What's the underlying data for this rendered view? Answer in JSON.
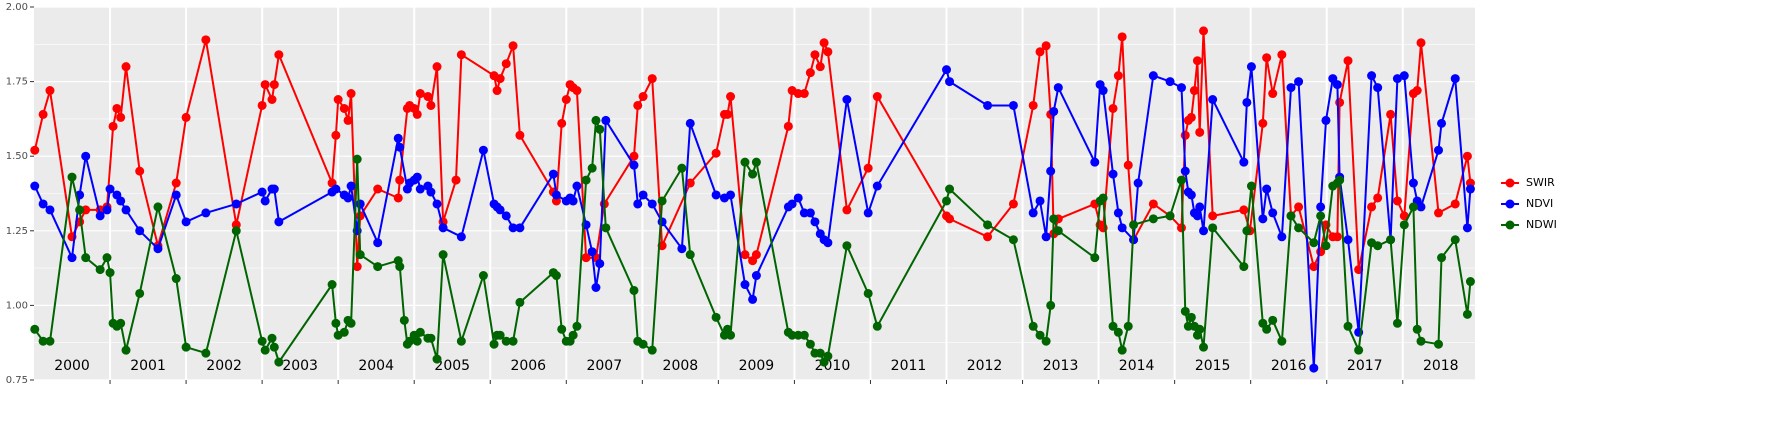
{
  "chart_data": {
    "type": "line",
    "xlim": [
      2000,
      2018.95
    ],
    "ylim": [
      0.75,
      2.0
    ],
    "yticks": [
      0.75,
      {
        "value": 1.0,
        "label": "1.00"
      },
      1.25,
      {
        "value": 1.5,
        "label": "1.50"
      },
      1.75,
      {
        "value": 2.0,
        "label": "2.00"
      }
    ],
    "xticks": [
      {
        "value": 2000.5,
        "label": "2000"
      },
      {
        "value": 2001.5,
        "label": "2001"
      },
      {
        "value": 2002.5,
        "label": "2002"
      },
      {
        "value": 2003.5,
        "label": "2003"
      },
      {
        "value": 2004.5,
        "label": "2004"
      },
      {
        "value": 2005.5,
        "label": "2005"
      },
      {
        "value": 2006.5,
        "label": "2006"
      },
      {
        "value": 2007.5,
        "label": "2007"
      },
      {
        "value": 2008.5,
        "label": "2008"
      },
      {
        "value": 2009.5,
        "label": "2009"
      },
      {
        "value": 2010.5,
        "label": "2010"
      },
      {
        "value": 2011.5,
        "label": "2011"
      },
      {
        "value": 2012.5,
        "label": "2012"
      },
      {
        "value": 2013.5,
        "label": "2013"
      },
      {
        "value": 2014.5,
        "label": "2014"
      },
      {
        "value": 2015.5,
        "label": "2015"
      },
      {
        "value": 2016.5,
        "label": "2016"
      },
      {
        "value": 2017.5,
        "label": "2017"
      },
      {
        "value": 2018.5,
        "label": "2018"
      }
    ],
    "grid": true,
    "legend": "right",
    "series": [
      {
        "name": "SWIR",
        "color": "#ff0000",
        "x": [
          2000.01,
          2000.12,
          2000.21,
          2000.5,
          2000.6,
          2000.68,
          2000.87,
          2000.96,
          2001.04,
          2001.09,
          2001.14,
          2001.21,
          2001.39,
          2001.63,
          2001.87,
          2002.0,
          2002.26,
          2002.66,
          2003.0,
          2003.04,
          2003.13,
          2003.16,
          2003.22,
          2003.92,
          2003.97,
          2004.0,
          2004.08,
          2004.13,
          2004.17,
          2004.25,
          2004.29,
          2004.52,
          2004.79,
          2004.81,
          2004.91,
          2004.94,
          2005.0,
          2005.04,
          2005.08,
          2005.18,
          2005.22,
          2005.3,
          2005.38,
          2005.55,
          2005.62,
          2006.05,
          2006.09,
          2006.13,
          2006.21,
          2006.3,
          2006.39,
          2006.83,
          2006.87,
          2006.94,
          2007.0,
          2007.05,
          2007.09,
          2007.14,
          2007.26,
          2007.39,
          2007.5,
          2007.89,
          2007.94,
          2008.01,
          2008.13,
          2008.26,
          2008.63,
          2008.97,
          2009.08,
          2009.12,
          2009.16,
          2009.35,
          2009.45,
          2009.5,
          2009.92,
          2009.97,
          2010.05,
          2010.13,
          2010.21,
          2010.27,
          2010.34,
          2010.39,
          2010.44,
          2010.69,
          2010.97,
          2011.09,
          2012.0,
          2012.04,
          2012.54,
          2012.88,
          2013.14,
          2013.23,
          2013.31,
          2013.37,
          2013.41,
          2013.47,
          2013.95,
          2014.02,
          2014.06,
          2014.19,
          2014.26,
          2014.31,
          2014.39,
          2014.46,
          2014.72,
          2014.94,
          2015.09,
          2015.14,
          2015.18,
          2015.22,
          2015.26,
          2015.3,
          2015.33,
          2015.38,
          2015.5,
          2015.91,
          2015.99,
          2016.16,
          2016.21,
          2016.29,
          2016.41,
          2016.53,
          2016.63,
          2016.83,
          2016.92,
          2016.99,
          2017.08,
          2017.14,
          2017.17,
          2017.28,
          2017.42,
          2017.59,
          2017.67,
          2017.84,
          2017.93,
          2018.02,
          2018.14,
          2018.19,
          2018.24,
          2018.47,
          2018.69,
          2018.85,
          2018.89
        ],
        "values": [
          1.52,
          1.64,
          1.72,
          1.23,
          1.28,
          1.32,
          1.32,
          1.33,
          1.6,
          1.66,
          1.63,
          1.8,
          1.45,
          1.2,
          1.41,
          1.63,
          1.89,
          1.27,
          1.67,
          1.74,
          1.69,
          1.74,
          1.84,
          1.41,
          1.57,
          1.69,
          1.66,
          1.62,
          1.71,
          1.13,
          1.3,
          1.39,
          1.36,
          1.42,
          1.66,
          1.67,
          1.66,
          1.64,
          1.71,
          1.7,
          1.67,
          1.8,
          1.28,
          1.42,
          1.84,
          1.77,
          1.72,
          1.76,
          1.81,
          1.87,
          1.57,
          1.38,
          1.35,
          1.61,
          1.69,
          1.74,
          1.73,
          1.72,
          1.16,
          1.16,
          1.34,
          1.5,
          1.67,
          1.7,
          1.76,
          1.2,
          1.41,
          1.51,
          1.64,
          1.64,
          1.7,
          1.17,
          1.15,
          1.17,
          1.6,
          1.72,
          1.71,
          1.71,
          1.78,
          1.84,
          1.8,
          1.88,
          1.85,
          1.32,
          1.46,
          1.7,
          1.3,
          1.29,
          1.23,
          1.34,
          1.67,
          1.85,
          1.87,
          1.64,
          1.24,
          1.29,
          1.34,
          1.27,
          1.26,
          1.66,
          1.77,
          1.9,
          1.47,
          1.22,
          1.34,
          1.3,
          1.26,
          1.57,
          1.62,
          1.63,
          1.72,
          1.82,
          1.58,
          1.92,
          1.3,
          1.32,
          1.25,
          1.61,
          1.83,
          1.71,
          1.84,
          1.3,
          1.33,
          1.13,
          1.18,
          1.27,
          1.23,
          1.23,
          1.68,
          1.82,
          1.12,
          1.33,
          1.36,
          1.64,
          1.35,
          1.3,
          1.71,
          1.72,
          1.88,
          1.31,
          1.34,
          1.5,
          1.41
        ]
      },
      {
        "name": "NDVI",
        "color": "#0000ff",
        "x": [
          2000.01,
          2000.12,
          2000.21,
          2000.5,
          2000.6,
          2000.68,
          2000.87,
          2000.96,
          2001.0,
          2001.09,
          2001.14,
          2001.21,
          2001.39,
          2001.63,
          2001.87,
          2002.0,
          2002.26,
          2002.66,
          2003.0,
          2003.04,
          2003.13,
          2003.16,
          2003.22,
          2003.92,
          2003.97,
          2004.08,
          2004.13,
          2004.17,
          2004.25,
          2004.29,
          2004.52,
          2004.79,
          2004.81,
          2004.91,
          2004.94,
          2005.0,
          2005.04,
          2005.08,
          2005.18,
          2005.22,
          2005.3,
          2005.38,
          2005.62,
          2005.91,
          2006.05,
          2006.09,
          2006.13,
          2006.21,
          2006.3,
          2006.39,
          2006.83,
          2006.87,
          2007.0,
          2007.05,
          2007.09,
          2007.14,
          2007.26,
          2007.34,
          2007.39,
          2007.44,
          2007.52,
          2007.89,
          2007.94,
          2008.01,
          2008.13,
          2008.26,
          2008.52,
          2008.63,
          2008.97,
          2009.08,
          2009.16,
          2009.35,
          2009.45,
          2009.5,
          2009.92,
          2009.97,
          2010.05,
          2010.13,
          2010.21,
          2010.27,
          2010.34,
          2010.39,
          2010.44,
          2010.69,
          2010.97,
          2011.09,
          2012.0,
          2012.04,
          2012.54,
          2012.88,
          2013.14,
          2013.23,
          2013.31,
          2013.37,
          2013.41,
          2013.47,
          2013.95,
          2014.02,
          2014.06,
          2014.19,
          2014.26,
          2014.31,
          2014.46,
          2014.52,
          2014.72,
          2014.94,
          2015.09,
          2015.14,
          2015.18,
          2015.22,
          2015.26,
          2015.3,
          2015.33,
          2015.38,
          2015.5,
          2015.91,
          2015.95,
          2016.01,
          2016.16,
          2016.21,
          2016.29,
          2016.41,
          2016.53,
          2016.63,
          2016.83,
          2016.92,
          2016.99,
          2017.08,
          2017.14,
          2017.17,
          2017.28,
          2017.42,
          2017.59,
          2017.67,
          2017.84,
          2017.93,
          2018.02,
          2018.14,
          2018.19,
          2018.24,
          2018.47,
          2018.51,
          2018.69,
          2018.85,
          2018.89
        ],
        "values": [
          1.4,
          1.34,
          1.32,
          1.16,
          1.37,
          1.5,
          1.3,
          1.32,
          1.39,
          1.37,
          1.35,
          1.32,
          1.25,
          1.19,
          1.37,
          1.28,
          1.31,
          1.34,
          1.38,
          1.35,
          1.39,
          1.39,
          1.28,
          1.38,
          1.39,
          1.37,
          1.36,
          1.4,
          1.25,
          1.34,
          1.21,
          1.56,
          1.53,
          1.39,
          1.41,
          1.42,
          1.43,
          1.39,
          1.4,
          1.38,
          1.34,
          1.26,
          1.23,
          1.52,
          1.34,
          1.33,
          1.32,
          1.3,
          1.26,
          1.26,
          1.44,
          1.37,
          1.35,
          1.36,
          1.35,
          1.4,
          1.27,
          1.18,
          1.06,
          1.14,
          1.62,
          1.47,
          1.34,
          1.37,
          1.34,
          1.28,
          1.19,
          1.61,
          1.37,
          1.36,
          1.37,
          1.07,
          1.02,
          1.1,
          1.33,
          1.34,
          1.36,
          1.31,
          1.31,
          1.28,
          1.24,
          1.22,
          1.21,
          1.69,
          1.31,
          1.4,
          1.79,
          1.75,
          1.67,
          1.67,
          1.31,
          1.35,
          1.23,
          1.45,
          1.65,
          1.73,
          1.48,
          1.74,
          1.72,
          1.44,
          1.31,
          1.26,
          1.22,
          1.41,
          1.77,
          1.75,
          1.73,
          1.45,
          1.38,
          1.37,
          1.31,
          1.3,
          1.33,
          1.25,
          1.69,
          1.48,
          1.68,
          1.8,
          1.29,
          1.39,
          1.31,
          1.23,
          1.73,
          1.75,
          0.79,
          1.33,
          1.62,
          1.76,
          1.74,
          1.43,
          1.22,
          0.91,
          1.77,
          1.73,
          1.22,
          1.76,
          1.77,
          1.41,
          1.35,
          1.33,
          1.52,
          1.61,
          1.76,
          1.26,
          1.39
        ]
      },
      {
        "name": "NDWI",
        "color": "#006400",
        "x": [
          2000.01,
          2000.12,
          2000.21,
          2000.5,
          2000.6,
          2000.68,
          2000.87,
          2000.96,
          2001.0,
          2001.04,
          2001.09,
          2001.14,
          2001.21,
          2001.39,
          2001.63,
          2001.87,
          2002.0,
          2002.26,
          2002.66,
          2003.0,
          2003.04,
          2003.13,
          2003.16,
          2003.22,
          2003.92,
          2003.97,
          2004.0,
          2004.08,
          2004.13,
          2004.17,
          2004.25,
          2004.29,
          2004.52,
          2004.79,
          2004.81,
          2004.87,
          2004.91,
          2004.94,
          2005.0,
          2005.04,
          2005.08,
          2005.18,
          2005.22,
          2005.3,
          2005.38,
          2005.62,
          2005.91,
          2006.05,
          2006.09,
          2006.13,
          2006.21,
          2006.3,
          2006.39,
          2006.83,
          2006.87,
          2006.94,
          2007.0,
          2007.05,
          2007.09,
          2007.14,
          2007.26,
          2007.34,
          2007.39,
          2007.44,
          2007.52,
          2007.89,
          2007.94,
          2008.01,
          2008.13,
          2008.26,
          2008.52,
          2008.63,
          2008.97,
          2009.08,
          2009.12,
          2009.16,
          2009.35,
          2009.45,
          2009.5,
          2009.92,
          2009.97,
          2010.05,
          2010.13,
          2010.21,
          2010.27,
          2010.34,
          2010.39,
          2010.44,
          2010.69,
          2010.97,
          2011.09,
          2012.0,
          2012.04,
          2012.54,
          2012.88,
          2013.14,
          2013.23,
          2013.31,
          2013.37,
          2013.41,
          2013.47,
          2013.95,
          2014.02,
          2014.06,
          2014.19,
          2014.26,
          2014.31,
          2014.39,
          2014.46,
          2014.72,
          2014.94,
          2015.09,
          2015.14,
          2015.18,
          2015.22,
          2015.26,
          2015.3,
          2015.33,
          2015.38,
          2015.5,
          2015.91,
          2015.95,
          2016.01,
          2016.16,
          2016.21,
          2016.29,
          2016.41,
          2016.53,
          2016.63,
          2016.83,
          2016.92,
          2016.99,
          2017.08,
          2017.14,
          2017.17,
          2017.28,
          2017.42,
          2017.59,
          2017.67,
          2017.84,
          2017.93,
          2018.02,
          2018.14,
          2018.19,
          2018.24,
          2018.47,
          2018.51,
          2018.69,
          2018.85,
          2018.89
        ],
        "values": [
          0.92,
          0.88,
          0.88,
          1.43,
          1.32,
          1.16,
          1.12,
          1.16,
          1.11,
          0.94,
          0.93,
          0.94,
          0.85,
          1.04,
          1.33,
          1.09,
          0.86,
          0.84,
          1.25,
          0.88,
          0.85,
          0.89,
          0.86,
          0.81,
          1.07,
          0.94,
          0.9,
          0.91,
          0.95,
          0.94,
          1.49,
          1.17,
          1.13,
          1.15,
          1.13,
          0.95,
          0.87,
          0.88,
          0.9,
          0.88,
          0.91,
          0.89,
          0.89,
          0.82,
          1.17,
          0.88,
          1.1,
          0.87,
          0.9,
          0.9,
          0.88,
          0.88,
          1.01,
          1.11,
          1.1,
          0.92,
          0.88,
          0.88,
          0.9,
          0.93,
          1.42,
          1.46,
          1.62,
          1.59,
          1.26,
          1.05,
          0.88,
          0.87,
          0.85,
          1.35,
          1.46,
          1.17,
          0.96,
          0.9,
          0.92,
          0.9,
          1.48,
          1.44,
          1.48,
          0.91,
          0.9,
          0.9,
          0.9,
          0.87,
          0.84,
          0.84,
          0.81,
          0.83,
          1.2,
          1.04,
          0.93,
          1.35,
          1.39,
          1.27,
          1.22,
          0.93,
          0.9,
          0.88,
          1.0,
          1.29,
          1.25,
          1.16,
          1.35,
          1.36,
          0.93,
          0.91,
          0.85,
          0.93,
          1.27,
          1.29,
          1.3,
          1.42,
          0.98,
          0.93,
          0.96,
          0.93,
          0.9,
          0.92,
          0.86,
          1.26,
          1.13,
          1.25,
          1.4,
          0.94,
          0.92,
          0.95,
          0.88,
          1.3,
          1.26,
          1.21,
          1.3,
          1.2,
          1.4,
          1.41,
          1.42,
          0.93,
          0.85,
          1.21,
          1.2,
          1.22,
          0.94,
          1.27,
          1.33,
          0.92,
          0.88,
          0.87,
          1.16,
          1.22,
          0.97,
          1.08
        ]
      }
    ]
  }
}
